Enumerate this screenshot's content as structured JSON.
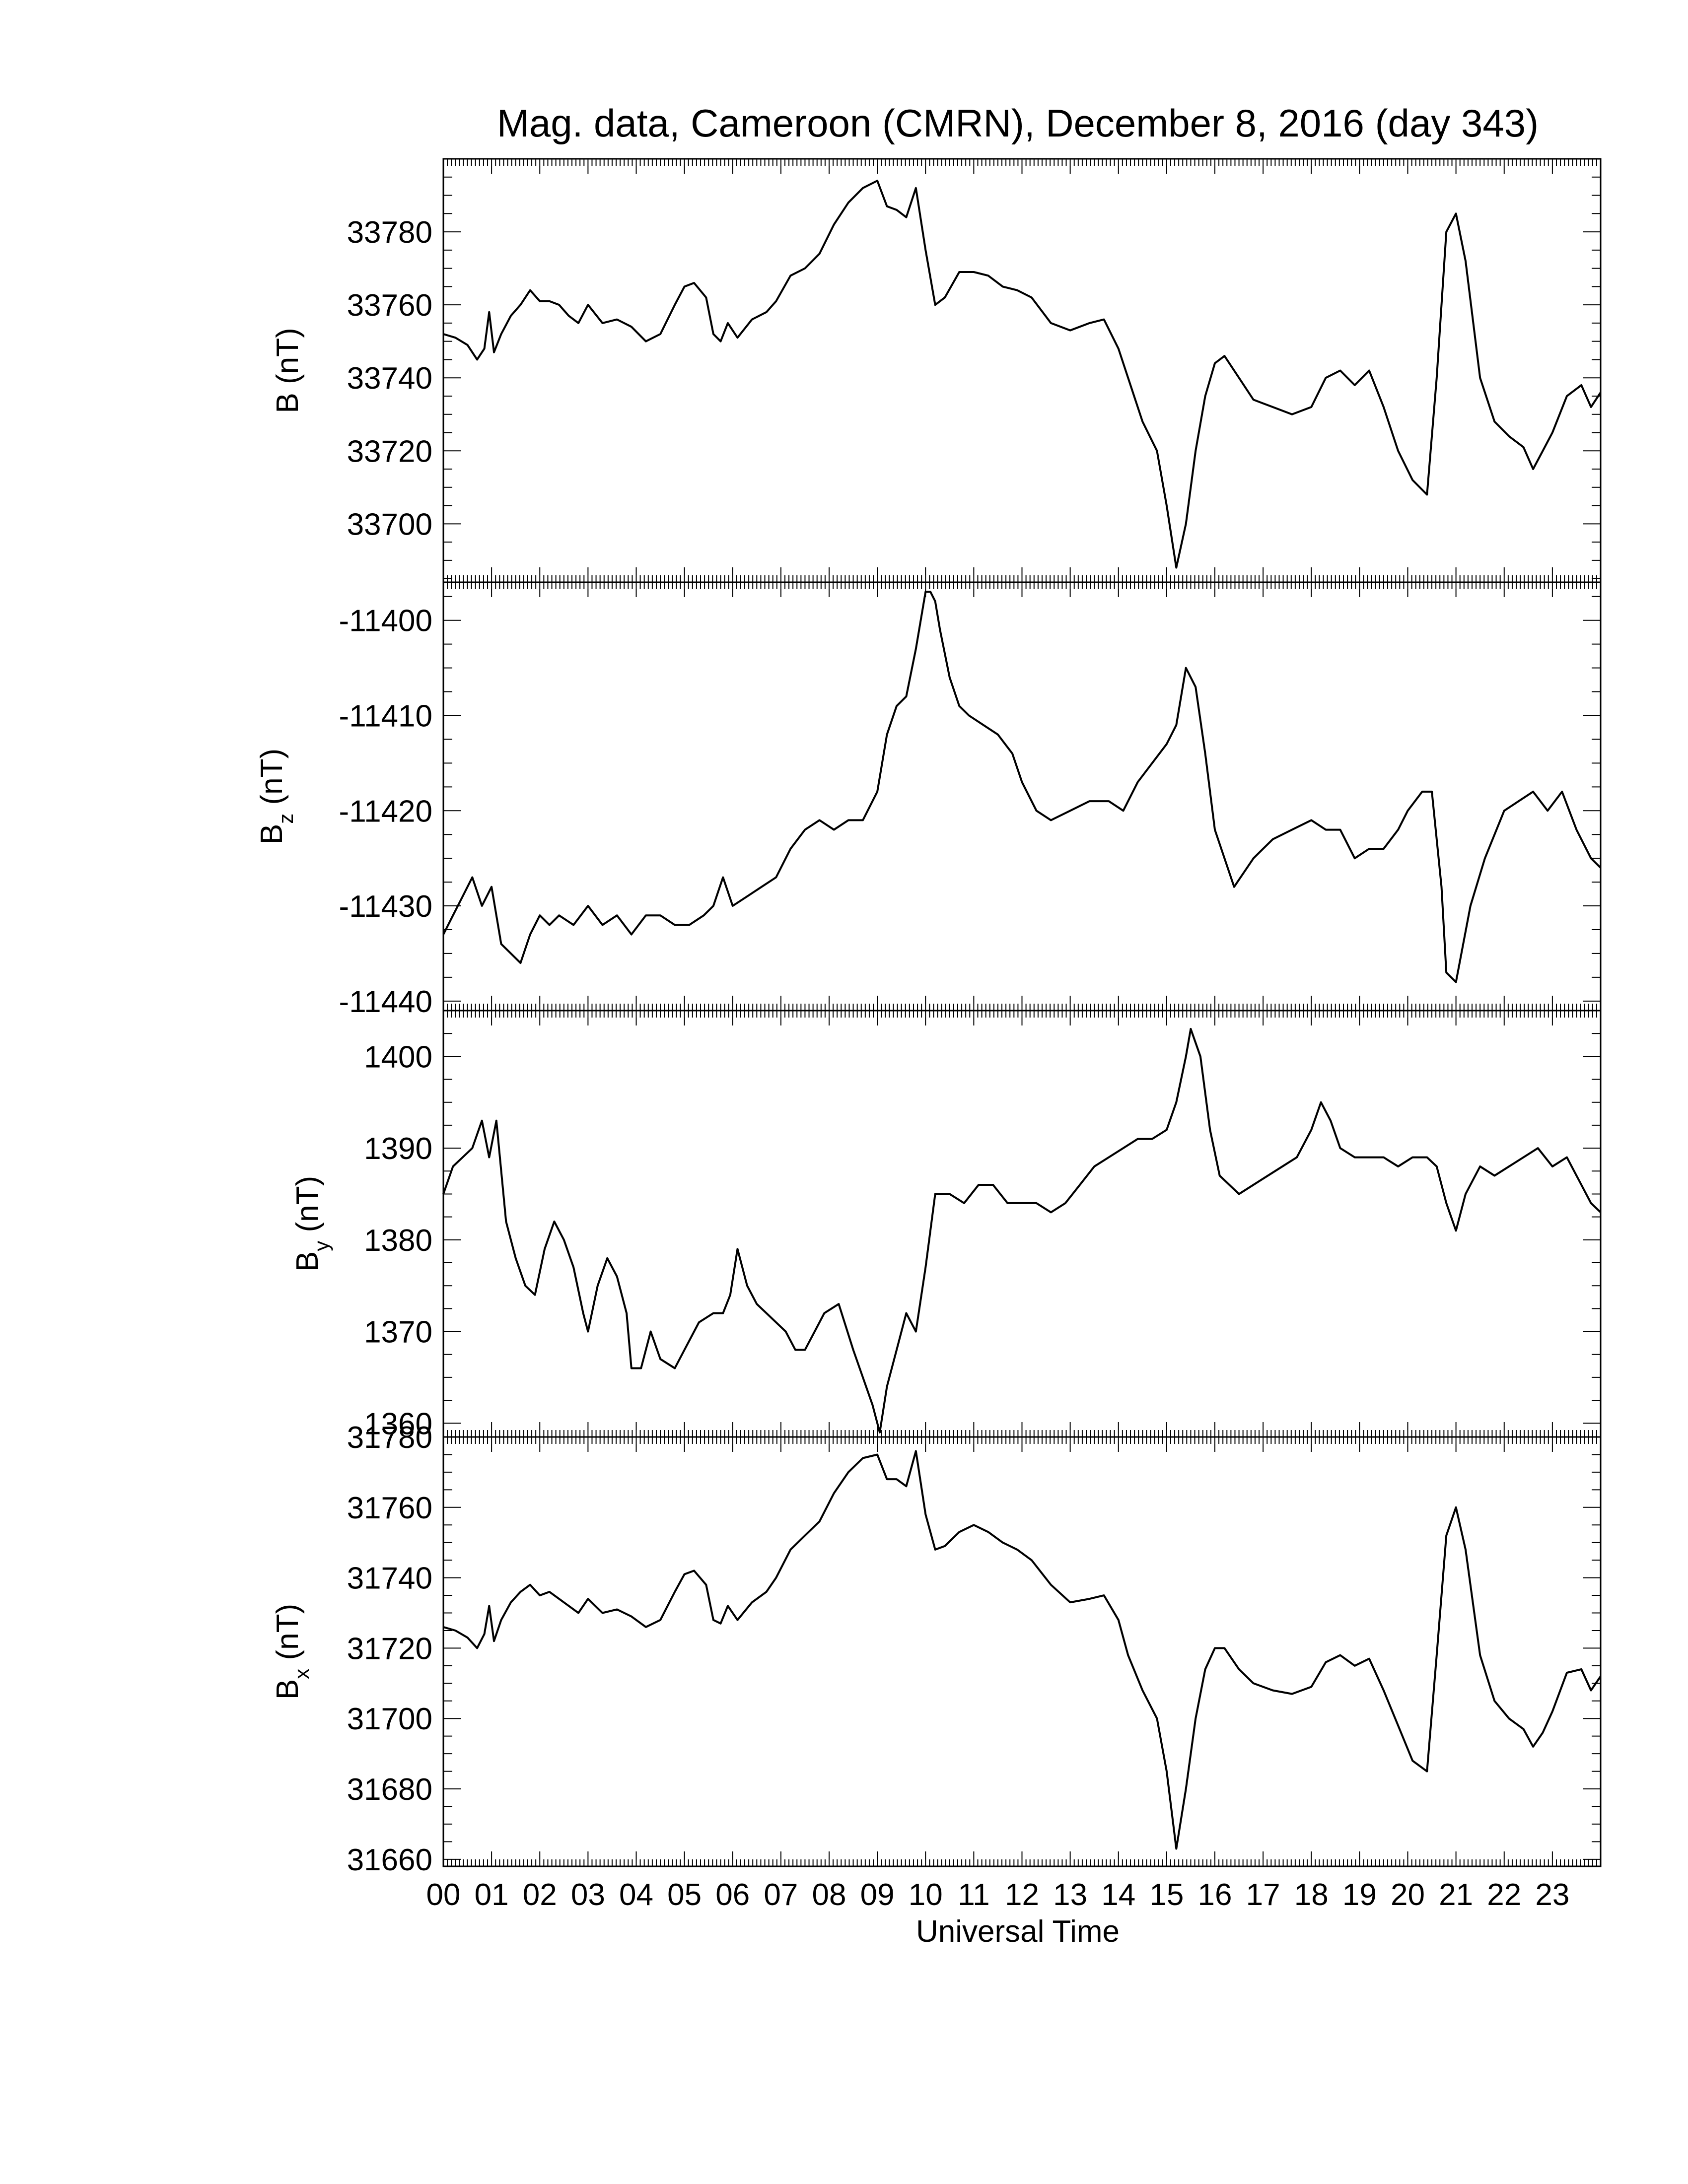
{
  "chart_data": {
    "type": "line",
    "title": "Mag. data, Cameroon (CMRN), December 8, 2016 (day 343)",
    "xlabel": "Universal Time",
    "x_unit": "hours",
    "xlim": [
      0,
      24
    ],
    "x_ticks": [
      "00",
      "01",
      "02",
      "03",
      "04",
      "05",
      "06",
      "07",
      "08",
      "09",
      "10",
      "11",
      "12",
      "13",
      "14",
      "15",
      "16",
      "17",
      "18",
      "19",
      "20",
      "21",
      "22",
      "23"
    ],
    "grid": false,
    "line_color": "#000000",
    "panels": [
      {
        "id": "B",
        "ylabel_main": "B",
        "ylabel_sub": "",
        "ylabel_unit": "(nT)",
        "ylim": [
          33684,
          33800
        ],
        "yticks": [
          33700,
          33720,
          33740,
          33760,
          33780
        ],
        "series": [
          {
            "x": [
              0,
              0.25,
              0.5,
              0.7,
              0.85,
              0.95,
              1.05,
              1.2,
              1.4,
              1.6,
              1.8,
              2.0,
              2.2,
              2.4,
              2.6,
              2.8,
              3.0,
              3.3,
              3.6,
              3.9,
              4.2,
              4.5,
              4.8,
              5.0,
              5.2,
              5.45,
              5.6,
              5.75,
              5.9,
              6.1,
              6.4,
              6.7,
              6.9,
              7.2,
              7.5,
              7.8,
              8.1,
              8.4,
              8.7,
              9.0,
              9.2,
              9.4,
              9.6,
              9.8,
              10.0,
              10.2,
              10.4,
              10.7,
              11.0,
              11.3,
              11.6,
              11.9,
              12.2,
              12.6,
              13.0,
              13.4,
              13.7,
              14.0,
              14.2,
              14.5,
              14.8,
              15.0,
              15.2,
              15.4,
              15.6,
              15.8,
              16.0,
              16.2,
              16.5,
              16.8,
              17.2,
              17.6,
              18.0,
              18.3,
              18.6,
              18.9,
              19.2,
              19.5,
              19.8,
              20.1,
              20.4,
              20.6,
              20.8,
              21.0,
              21.2,
              21.5,
              21.8,
              22.1,
              22.4,
              22.6,
              22.8,
              23.0,
              23.3,
              23.6,
              23.8,
              24.0
            ],
            "y": [
              33752,
              33751,
              33749,
              33745,
              33748,
              33758,
              33747,
              33752,
              33757,
              33760,
              33764,
              33761,
              33761,
              33760,
              33757,
              33755,
              33760,
              33755,
              33756,
              33754,
              33750,
              33752,
              33760,
              33765,
              33766,
              33762,
              33752,
              33750,
              33755,
              33751,
              33756,
              33758,
              33761,
              33768,
              33770,
              33774,
              33782,
              33788,
              33792,
              33794,
              33787,
              33786,
              33784,
              33792,
              33775,
              33760,
              33762,
              33769,
              33769,
              33768,
              33765,
              33764,
              33762,
              33755,
              33753,
              33755,
              33756,
              33748,
              33740,
              33728,
              33720,
              33705,
              33688,
              33700,
              33720,
              33735,
              33744,
              33746,
              33740,
              33734,
              33732,
              33730,
              33732,
              33740,
              33742,
              33738,
              33742,
              33732,
              33720,
              33712,
              33708,
              33740,
              33780,
              33785,
              33772,
              33740,
              33728,
              33724,
              33721,
              33715,
              33720,
              33725,
              33735,
              33738,
              33732,
              33736
            ]
          }
        ]
      },
      {
        "id": "Bz",
        "ylabel_main": "B",
        "ylabel_sub": "z",
        "ylabel_unit": "(nT)",
        "ylim": [
          -11441,
          -11396
        ],
        "yticks": [
          -11440,
          -11430,
          -11420,
          -11410,
          -11400
        ],
        "series": [
          {
            "x": [
              0,
              0.2,
              0.4,
              0.6,
              0.8,
              1.0,
              1.2,
              1.4,
              1.6,
              1.8,
              2.0,
              2.2,
              2.4,
              2.7,
              3.0,
              3.3,
              3.6,
              3.9,
              4.2,
              4.5,
              4.8,
              5.1,
              5.4,
              5.6,
              5.8,
              6.0,
              6.3,
              6.6,
              6.9,
              7.2,
              7.5,
              7.8,
              8.1,
              8.4,
              8.7,
              9.0,
              9.2,
              9.4,
              9.6,
              9.8,
              10.0,
              10.1,
              10.2,
              10.3,
              10.5,
              10.7,
              10.9,
              11.2,
              11.5,
              11.8,
              12.0,
              12.3,
              12.6,
              13.0,
              13.4,
              13.8,
              14.1,
              14.4,
              14.7,
              15.0,
              15.2,
              15.4,
              15.6,
              15.8,
              16.0,
              16.2,
              16.4,
              16.8,
              17.2,
              17.6,
              18.0,
              18.3,
              18.6,
              18.9,
              19.2,
              19.5,
              19.8,
              20.0,
              20.3,
              20.5,
              20.7,
              20.8,
              21.0,
              21.3,
              21.6,
              22.0,
              22.3,
              22.6,
              22.9,
              23.2,
              23.5,
              23.8,
              24.0
            ],
            "y": [
              -11433,
              -11431,
              -11429,
              -11427,
              -11430,
              -11428,
              -11434,
              -11435,
              -11436,
              -11433,
              -11431,
              -11432,
              -11431,
              -11432,
              -11430,
              -11432,
              -11431,
              -11433,
              -11431,
              -11431,
              -11432,
              -11432,
              -11431,
              -11430,
              -11427,
              -11430,
              -11429,
              -11428,
              -11427,
              -11424,
              -11422,
              -11421,
              -11422,
              -11421,
              -11421,
              -11418,
              -11412,
              -11409,
              -11408,
              -11403,
              -11397,
              -11397,
              -11398,
              -11401,
              -11406,
              -11409,
              -11410,
              -11411,
              -11412,
              -11414,
              -11417,
              -11420,
              -11421,
              -11420,
              -11419,
              -11419,
              -11420,
              -11417,
              -11415,
              -11413,
              -11411,
              -11405,
              -11407,
              -11414,
              -11422,
              -11425,
              -11428,
              -11425,
              -11423,
              -11422,
              -11421,
              -11422,
              -11422,
              -11425,
              -11424,
              -11424,
              -11422,
              -11420,
              -11418,
              -11418,
              -11428,
              -11437,
              -11438,
              -11430,
              -11425,
              -11420,
              -11419,
              -11418,
              -11420,
              -11418,
              -11422,
              -11425,
              -11426
            ]
          }
        ]
      },
      {
        "id": "By",
        "ylabel_main": "B",
        "ylabel_sub": "y",
        "ylabel_unit": "(nT)",
        "ylim": [
          1358.5,
          1405
        ],
        "yticks": [
          1360,
          1370,
          1380,
          1390,
          1400
        ],
        "series": [
          {
            "x": [
              0,
              0.2,
              0.4,
              0.6,
              0.8,
              0.95,
              1.1,
              1.3,
              1.5,
              1.7,
              1.9,
              2.1,
              2.3,
              2.5,
              2.7,
              2.9,
              3.0,
              3.2,
              3.4,
              3.6,
              3.8,
              3.9,
              4.1,
              4.3,
              4.5,
              4.8,
              5.0,
              5.3,
              5.6,
              5.8,
              5.95,
              6.1,
              6.3,
              6.5,
              6.7,
              6.9,
              7.1,
              7.3,
              7.5,
              7.7,
              7.9,
              8.2,
              8.5,
              8.7,
              8.9,
              9.05,
              9.2,
              9.4,
              9.6,
              9.8,
              10.0,
              10.2,
              10.5,
              10.8,
              11.1,
              11.4,
              11.7,
              12.0,
              12.3,
              12.6,
              12.9,
              13.2,
              13.5,
              13.8,
              14.1,
              14.4,
              14.7,
              15.0,
              15.2,
              15.4,
              15.5,
              15.7,
              15.9,
              16.1,
              16.3,
              16.5,
              16.8,
              17.1,
              17.4,
              17.7,
              18.0,
              18.2,
              18.4,
              18.6,
              18.9,
              19.2,
              19.5,
              19.8,
              20.1,
              20.4,
              20.6,
              20.8,
              21.0,
              21.2,
              21.5,
              21.8,
              22.1,
              22.4,
              22.7,
              23.0,
              23.3,
              23.6,
              23.8,
              24.0
            ],
            "y": [
              1385,
              1388,
              1389,
              1390,
              1393,
              1389,
              1393,
              1382,
              1378,
              1375,
              1374,
              1379,
              1382,
              1380,
              1377,
              1372,
              1370,
              1375,
              1378,
              1376,
              1372,
              1366,
              1366,
              1370,
              1367,
              1366,
              1368,
              1371,
              1372,
              1372,
              1374,
              1379,
              1375,
              1373,
              1372,
              1371,
              1370,
              1368,
              1368,
              1370,
              1372,
              1373,
              1368,
              1365,
              1362,
              1359,
              1364,
              1368,
              1372,
              1370,
              1377,
              1385,
              1385,
              1384,
              1386,
              1386,
              1384,
              1384,
              1384,
              1383,
              1384,
              1386,
              1388,
              1389,
              1390,
              1391,
              1391,
              1392,
              1395,
              1400,
              1403,
              1400,
              1392,
              1387,
              1386,
              1385,
              1386,
              1387,
              1388,
              1389,
              1392,
              1395,
              1393,
              1390,
              1389,
              1389,
              1389,
              1388,
              1389,
              1389,
              1388,
              1384,
              1381,
              1385,
              1388,
              1387,
              1388,
              1389,
              1390,
              1388,
              1389,
              1386,
              1384,
              1383
            ]
          }
        ]
      },
      {
        "id": "Bx",
        "ylabel_main": "B",
        "ylabel_sub": "x",
        "ylabel_unit": "(nT)",
        "ylim": [
          31658,
          31780
        ],
        "yticks": [
          31660,
          31680,
          31700,
          31720,
          31740,
          31760,
          31780
        ],
        "series": [
          {
            "x": [
              0,
              0.25,
              0.5,
              0.7,
              0.85,
              0.95,
              1.05,
              1.2,
              1.4,
              1.6,
              1.8,
              2.0,
              2.2,
              2.4,
              2.6,
              2.8,
              3.0,
              3.3,
              3.6,
              3.9,
              4.2,
              4.5,
              4.8,
              5.0,
              5.2,
              5.45,
              5.6,
              5.75,
              5.9,
              6.1,
              6.4,
              6.7,
              6.9,
              7.2,
              7.5,
              7.8,
              8.1,
              8.4,
              8.7,
              9.0,
              9.2,
              9.4,
              9.6,
              9.8,
              10.0,
              10.2,
              10.4,
              10.7,
              11.0,
              11.3,
              11.6,
              11.9,
              12.2,
              12.6,
              13.0,
              13.4,
              13.7,
              14.0,
              14.2,
              14.5,
              14.8,
              15.0,
              15.2,
              15.4,
              15.6,
              15.8,
              16.0,
              16.2,
              16.5,
              16.8,
              17.2,
              17.6,
              18.0,
              18.3,
              18.6,
              18.9,
              19.2,
              19.5,
              19.8,
              20.1,
              20.4,
              20.6,
              20.8,
              21.0,
              21.2,
              21.5,
              21.8,
              22.1,
              22.4,
              22.6,
              22.8,
              23.0,
              23.3,
              23.6,
              23.8,
              24.0
            ],
            "y": [
              31726,
              31725,
              31723,
              31720,
              31724,
              31732,
              31722,
              31728,
              31733,
              31736,
              31738,
              31735,
              31736,
              31734,
              31732,
              31730,
              31734,
              31730,
              31731,
              31729,
              31726,
              31728,
              31736,
              31741,
              31742,
              31738,
              31728,
              31727,
              31732,
              31728,
              31733,
              31736,
              31740,
              31748,
              31752,
              31756,
              31764,
              31770,
              31774,
              31775,
              31768,
              31768,
              31766,
              31776,
              31758,
              31748,
              31749,
              31753,
              31755,
              31753,
              31750,
              31748,
              31745,
              31738,
              31733,
              31734,
              31735,
              31728,
              31718,
              31708,
              31700,
              31685,
              31663,
              31680,
              31700,
              31714,
              31720,
              31720,
              31714,
              31710,
              31708,
              31707,
              31709,
              31716,
              31718,
              31715,
              31717,
              31708,
              31698,
              31688,
              31685,
              31718,
              31752,
              31760,
              31748,
              31718,
              31705,
              31700,
              31697,
              31692,
              31696,
              31702,
              31713,
              31714,
              31708,
              31712
            ]
          }
        ]
      }
    ]
  }
}
